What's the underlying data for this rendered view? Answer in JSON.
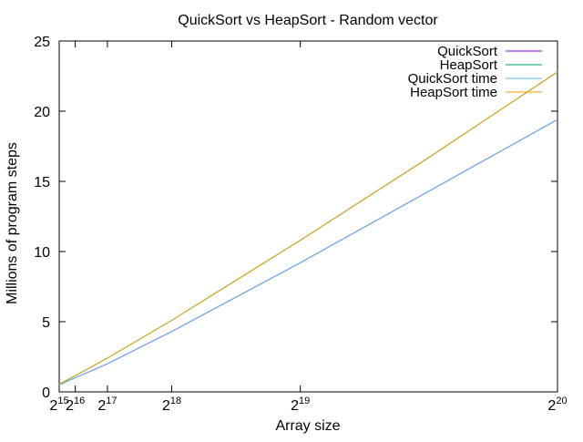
{
  "chart_data": {
    "type": "line",
    "title": "QuickSort vs HeapSort - Random vector",
    "xlabel": "Array size",
    "ylabel": "Millions of program steps",
    "x_scale": "linear",
    "x_ticks": [
      32768,
      65536,
      131072,
      262144,
      524288,
      1048576
    ],
    "x_tick_labels": [
      {
        "base": "2",
        "exp": "15"
      },
      {
        "base": "2",
        "exp": "16"
      },
      {
        "base": "2",
        "exp": "17"
      },
      {
        "base": "2",
        "exp": "18"
      },
      {
        "base": "2",
        "exp": "19"
      },
      {
        "base": "2",
        "exp": "20"
      }
    ],
    "xlim": [
      32768,
      1048576
    ],
    "ylim": [
      0,
      25
    ],
    "y_ticks": [
      0,
      5,
      10,
      15,
      20,
      25
    ],
    "y_tick_labels": [
      "0",
      "5",
      "10",
      "15",
      "20",
      "25"
    ],
    "grid": false,
    "legend_position": "top-right",
    "x": [
      32768,
      65536,
      131072,
      262144,
      524288,
      786432,
      1048576
    ],
    "series": [
      {
        "name": "QuickSort",
        "color": "#9400d3",
        "values": [
          0.5,
          1.0,
          2.0,
          4.3,
          9.2,
          14.3,
          19.4
        ]
      },
      {
        "name": "HeapSort",
        "color": "#009e73",
        "values": [
          0.55,
          1.15,
          2.4,
          5.1,
          10.8,
          16.7,
          22.8
        ]
      },
      {
        "name": "QuickSort time",
        "color": "#56b4e9",
        "values": [
          0.5,
          1.0,
          2.0,
          4.3,
          9.2,
          14.3,
          19.4
        ]
      },
      {
        "name": "HeapSort time",
        "color": "#e69f00",
        "values": [
          0.55,
          1.15,
          2.4,
          5.1,
          10.8,
          16.7,
          22.8
        ]
      }
    ]
  }
}
